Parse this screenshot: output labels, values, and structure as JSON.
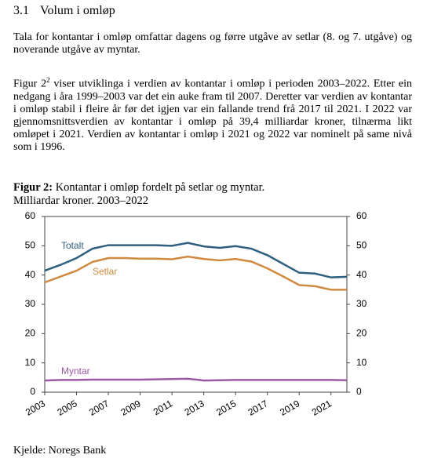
{
  "heading": {
    "number": "3.1",
    "title": "Volum i omløp"
  },
  "paragraphs": [
    "Tala for kontantar i omløp omfattar dagens og førre utgåve av setlar (8. og 7. utgåve) og noverande utgåve av myntar.",
    {
      "before": "Figur 2",
      "sup": "2",
      "after": " viser utviklinga i verdien av kontantar i omløp i perioden 2003–2022. Etter ein nedgang i åra 1999–2003 var det ein auke fram til 2007. Deretter var verdien av kontantar i omløp stabil i fleire år før det igjen var ein fallande trend frå 2017 til 2021. I 2022 var gjennomsnittsverdien av kontantar i omløp på 39,4 milliardar kroner, tilnærma likt omløpet i 2021. Verdien av kontantar i omløp i 2021 og 2022 var nominelt på same nivå som i 1996."
    }
  ],
  "figure": {
    "label": "Figur 2:",
    "caption": "Kontantar i omløp fordelt på setlar og myntar.",
    "subtitle": "Milliardar kroner. 2003–2022"
  },
  "chart_data": {
    "type": "line",
    "x": [
      2003,
      2004,
      2005,
      2006,
      2007,
      2008,
      2009,
      2010,
      2011,
      2012,
      2013,
      2014,
      2015,
      2016,
      2017,
      2018,
      2019,
      2020,
      2021,
      2022
    ],
    "xlim": [
      2003,
      2022
    ],
    "xticks": [
      2003,
      2005,
      2007,
      2009,
      2011,
      2013,
      2015,
      2017,
      2019,
      2021
    ],
    "ylim": [
      0,
      60
    ],
    "yticks": [
      0,
      10,
      20,
      30,
      40,
      50,
      60
    ],
    "y2lim": [
      0,
      60
    ],
    "y2ticks": [
      0,
      10,
      20,
      30,
      40,
      50,
      60
    ],
    "grid": false,
    "series": [
      {
        "name": "Totalt",
        "color": "#2e5f7f",
        "values": [
          41.5,
          43.5,
          45.8,
          49,
          50.2,
          50.2,
          50.2,
          50.2,
          50,
          51,
          49.8,
          49.3,
          49.9,
          49,
          46.8,
          43.8,
          40.8,
          40.5,
          39.2,
          39.4
        ]
      },
      {
        "name": "Setlar",
        "color": "#d08a40",
        "values": [
          37.5,
          39.5,
          41.5,
          44.5,
          45.8,
          45.8,
          45.6,
          45.6,
          45.4,
          46.3,
          45.5,
          45,
          45.5,
          44.6,
          42.3,
          39.5,
          36.6,
          36.2,
          35,
          35
        ]
      },
      {
        "name": "Myntar",
        "color": "#9c58a6",
        "values": [
          4,
          4.2,
          4.2,
          4.3,
          4.3,
          4.3,
          4.3,
          4.4,
          4.5,
          4.6,
          4,
          4.1,
          4.2,
          4.2,
          4.2,
          4.2,
          4.2,
          4.2,
          4.2,
          4.1
        ]
      }
    ]
  },
  "source": "Kjelde: Noregs Bank"
}
